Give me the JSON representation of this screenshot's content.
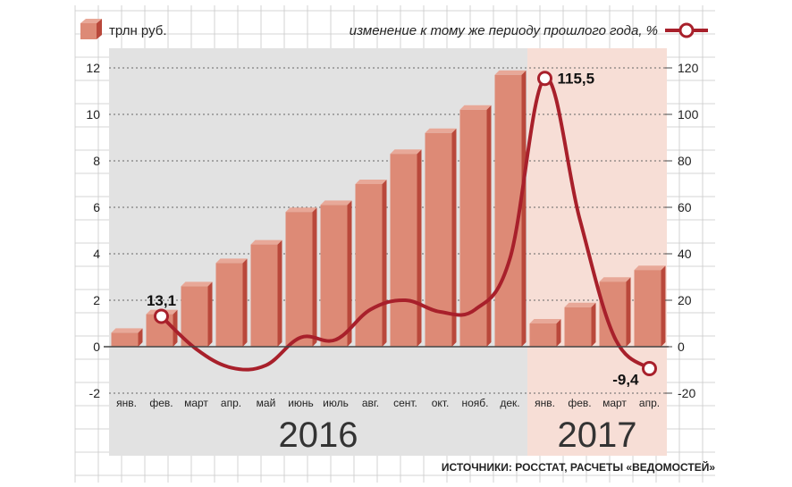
{
  "legend": {
    "bar_label": "трлн руб.",
    "line_label": "изменение к тому же периоду прошлого года, %"
  },
  "source": "ИСТОЧНИКИ: РОССТАТ, РАСЧЕТЫ «ВЕДОМОСТЕЙ»",
  "colors": {
    "bar_front": "#dd8a76",
    "bar_side": "#b9483b",
    "bar_top": "#e8a898",
    "line": "#a8202b",
    "period_2016": "#e2e2e2",
    "period_2017": "#f7ded6",
    "grid": "#c8c8c8"
  },
  "chart_data": {
    "type": "bar",
    "categories": [
      "янв.",
      "фев.",
      "март",
      "апр.",
      "май",
      "июнь",
      "июль",
      "авг.",
      "сент.",
      "окт.",
      "нояб.",
      "дек.",
      "янв.",
      "фев.",
      "март",
      "апр."
    ],
    "periods": [
      {
        "label": "2016",
        "start": 0,
        "end": 11
      },
      {
        "label": "2017",
        "start": 12,
        "end": 15
      }
    ],
    "series": [
      {
        "name": "трлн руб.",
        "axis": "left",
        "type": "bar",
        "values": [
          0.6,
          1.4,
          2.6,
          3.6,
          4.4,
          5.8,
          6.1,
          7.0,
          8.3,
          9.2,
          10.2,
          11.7,
          1.0,
          1.7,
          2.8,
          3.3
        ]
      },
      {
        "name": "изменение к тому же периоду прошлого года, %",
        "axis": "right",
        "type": "line",
        "values": [
          null,
          13.1,
          -1,
          -9,
          -8,
          4,
          3,
          16,
          20,
          15,
          16,
          38,
          115.5,
          55,
          4,
          -9.4
        ]
      }
    ],
    "annotations": [
      {
        "series": 1,
        "index": 1,
        "label": "13,1"
      },
      {
        "series": 1,
        "index": 12,
        "label": "115,5"
      },
      {
        "series": 1,
        "index": 15,
        "label": "-9,4"
      }
    ],
    "y_left": {
      "min": -2,
      "max": 12,
      "ticks": [
        "-2",
        "0",
        "2",
        "4",
        "6",
        "8",
        "10",
        "12"
      ]
    },
    "y_right": {
      "min": -20,
      "max": 120,
      "ticks": [
        "-20",
        "0",
        "20",
        "40",
        "60",
        "80",
        "100",
        "120"
      ]
    },
    "grid": true
  }
}
